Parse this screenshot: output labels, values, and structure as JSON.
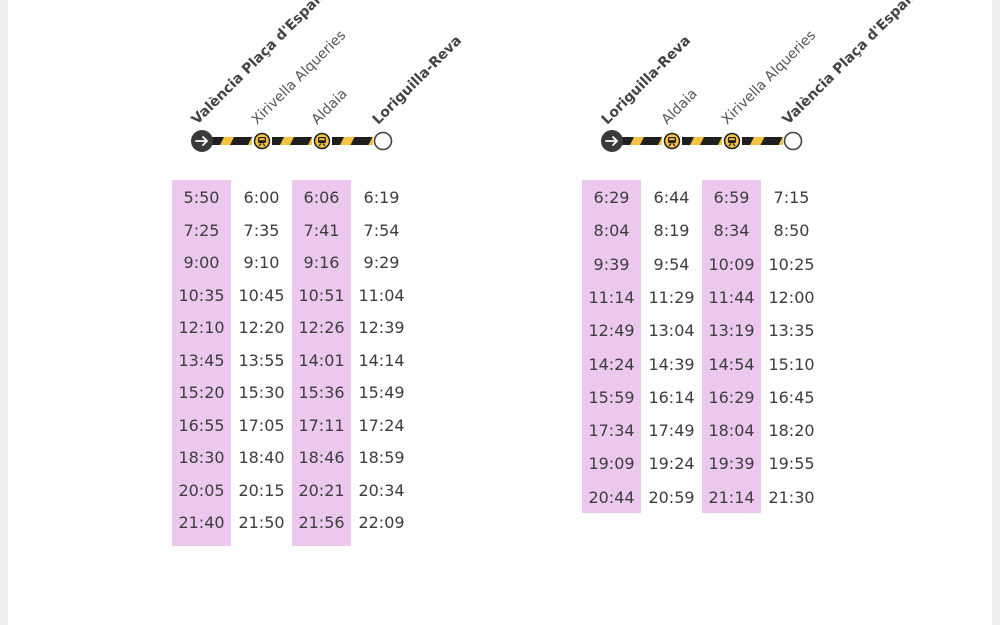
{
  "colors": {
    "highlight": "#ecc8ef",
    "line_yellow": "#f5c242",
    "line_black": "#1f1f1f",
    "origin_circle": "#3a3a3a",
    "text": "#3d3d3d"
  },
  "timetables": [
    {
      "stops": [
        {
          "name": "València Plaça d'Espanya",
          "terminal": true,
          "icon": "arrow-right-icon"
        },
        {
          "name": "Xirivella Alqueries",
          "terminal": false,
          "icon": "train-icon"
        },
        {
          "name": "Aldaia",
          "terminal": false,
          "icon": "train-icon"
        },
        {
          "name": "Loriguilla-Reva",
          "terminal": true,
          "icon": "end-circle-icon"
        }
      ],
      "columns": [
        [
          "5:50",
          "7:25",
          "9:00",
          "10:35",
          "12:10",
          "13:45",
          "15:20",
          "16:55",
          "18:30",
          "20:05",
          "21:40"
        ],
        [
          "6:00",
          "7:35",
          "9:10",
          "10:45",
          "12:20",
          "13:55",
          "15:30",
          "17:05",
          "18:40",
          "20:15",
          "21:50"
        ],
        [
          "6:06",
          "7:41",
          "9:16",
          "10:51",
          "12:26",
          "14:01",
          "15:36",
          "17:11",
          "18:46",
          "20:21",
          "21:56"
        ],
        [
          "6:19",
          "7:54",
          "9:29",
          "11:04",
          "12:39",
          "14:14",
          "15:49",
          "17:24",
          "18:59",
          "20:34",
          "22:09"
        ]
      ]
    },
    {
      "stops": [
        {
          "name": "Loriguilla-Reva",
          "terminal": true,
          "icon": "arrow-right-icon"
        },
        {
          "name": "Aldaia",
          "terminal": false,
          "icon": "train-icon"
        },
        {
          "name": "Xirivella Alqueries",
          "terminal": false,
          "icon": "train-icon"
        },
        {
          "name": "València Plaça d'Espanya",
          "terminal": true,
          "icon": "end-circle-icon"
        }
      ],
      "columns": [
        [
          "6:29",
          "8:04",
          "9:39",
          "11:14",
          "12:49",
          "14:24",
          "15:59",
          "17:34",
          "19:09",
          "20:44"
        ],
        [
          "6:44",
          "8:19",
          "9:54",
          "11:29",
          "13:04",
          "14:39",
          "16:14",
          "17:49",
          "19:24",
          "20:59"
        ],
        [
          "6:59",
          "8:34",
          "10:09",
          "11:44",
          "13:19",
          "14:54",
          "16:29",
          "18:04",
          "19:39",
          "21:14"
        ],
        [
          "7:15",
          "8:50",
          "10:25",
          "12:00",
          "13:35",
          "15:10",
          "16:45",
          "18:20",
          "19:55",
          "21:30"
        ]
      ]
    }
  ]
}
